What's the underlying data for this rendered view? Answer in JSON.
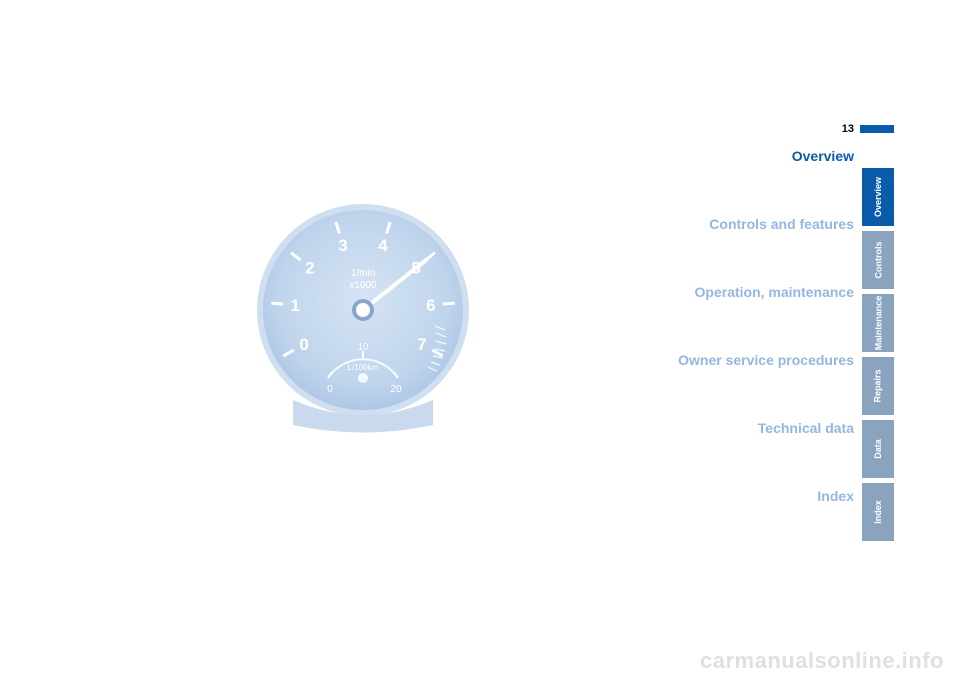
{
  "page_number": "13",
  "page_bar_color": "#0a5cab",
  "sections": [
    {
      "label": "Overview",
      "active": true
    },
    {
      "label": "Controls and features",
      "active": false
    },
    {
      "label": "Operation, maintenance",
      "active": false
    },
    {
      "label": "Owner service procedures",
      "active": false
    },
    {
      "label": "Technical data",
      "active": false
    },
    {
      "label": "Index",
      "active": false
    }
  ],
  "section_color_active": "#0a5cab",
  "section_color_inactive": "#93b7e2",
  "tabs": [
    {
      "label": "Overview",
      "active": true
    },
    {
      "label": "Controls",
      "active": false
    },
    {
      "label": "Maintenance",
      "active": false
    },
    {
      "label": "Repairs",
      "active": false
    },
    {
      "label": "Data",
      "active": false
    },
    {
      "label": "Index",
      "active": false
    }
  ],
  "tab_color_active": "#0a5cab",
  "tab_color_inactive": "#8aa4c0",
  "tab_text_color": "#ffffff",
  "gauge": {
    "face_color": "#bfd4ec",
    "tick_color": "#ffffff",
    "needle_color": "#ffffff",
    "label_top": "1/min",
    "label_bottom": "x1000",
    "major_numbers": [
      "0",
      "1",
      "2",
      "3",
      "4",
      "5",
      "6",
      "7"
    ],
    "sub_label": "L/100km",
    "sub_numbers": [
      "0",
      "10",
      "20"
    ],
    "sub_mid": "10",
    "number_font_size": 17,
    "label_font_size": 10,
    "redzone_start": 6.3,
    "redzone_end": 7
  },
  "watermark": "carmanualsonline.info",
  "watermark_color": "#e0e0e0",
  "page_bg": "#ffffff"
}
